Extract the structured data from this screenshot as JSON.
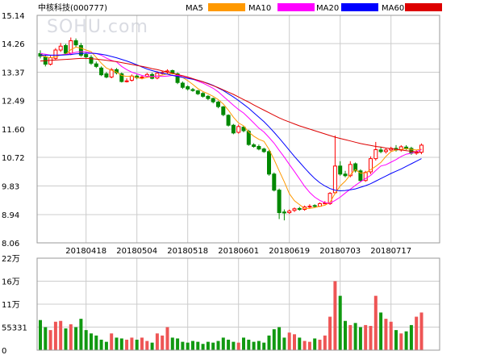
{
  "header": {
    "title": "中核科技(000777)",
    "watermark": "SOHU.com"
  },
  "legend": [
    {
      "label": "MA5",
      "color": "#ff9900"
    },
    {
      "label": "MA10",
      "color": "#ff00ff"
    },
    {
      "label": "MA20",
      "color": "#0000ff"
    },
    {
      "label": "MA60",
      "color": "#dd0000"
    }
  ],
  "colors": {
    "up": "#ff0000",
    "down": "#008800"
  },
  "chart_data": [
    {
      "type": "candlestick",
      "title": "中核科技(000777)",
      "ylim": [
        8.06,
        15.14
      ],
      "yticks": [
        "15.14",
        "14.26",
        "13.37",
        "12.49",
        "11.60",
        "10.72",
        "9.83",
        "8.94",
        "8.06"
      ],
      "ytick_values": [
        15.14,
        14.26,
        13.37,
        12.49,
        11.6,
        10.72,
        9.83,
        8.94,
        8.06
      ],
      "xtick_labels": [
        "20180418",
        "20180504",
        "20180518",
        "20180601",
        "20180619",
        "20180703",
        "20180717"
      ],
      "xtick_index": [
        9,
        19,
        29,
        39,
        49,
        59,
        69
      ],
      "legend_position": "top",
      "grid": true,
      "close": [
        13.87,
        13.62,
        13.82,
        14.06,
        14.18,
        13.96,
        14.35,
        14.22,
        13.9,
        13.85,
        13.65,
        13.55,
        13.29,
        13.22,
        13.45,
        13.35,
        13.08,
        13.1,
        13.25,
        13.2,
        13.22,
        13.3,
        13.18,
        13.34,
        13.36,
        13.41,
        13.34,
        13.05,
        12.9,
        12.85,
        12.8,
        12.7,
        12.62,
        12.55,
        12.45,
        12.3,
        12.05,
        11.72,
        11.48,
        11.68,
        11.55,
        11.12,
        11.06,
        10.98,
        10.9,
        10.2,
        9.7,
        9.0,
        8.99,
        9.05,
        9.12,
        9.1,
        9.18,
        9.2,
        9.2,
        9.28,
        9.3,
        9.6,
        10.45,
        10.2,
        10.15,
        10.5,
        10.3,
        10.0,
        10.25,
        10.68,
        10.96,
        10.9,
        10.95,
        11.0,
        10.95,
        11.05,
        11.0,
        10.85,
        10.88,
        11.1
      ],
      "open": [
        13.95,
        13.85,
        13.62,
        13.8,
        14.06,
        14.2,
        13.96,
        14.35,
        14.2,
        13.92,
        13.83,
        13.63,
        13.5,
        13.32,
        13.22,
        13.45,
        13.32,
        13.1,
        13.12,
        13.25,
        13.2,
        13.24,
        13.3,
        13.19,
        13.33,
        13.37,
        13.42,
        13.32,
        13.03,
        12.92,
        12.83,
        12.79,
        12.71,
        12.62,
        12.55,
        12.44,
        12.29,
        12.03,
        11.72,
        11.5,
        11.66,
        11.53,
        11.11,
        11.06,
        10.98,
        10.9,
        10.2,
        9.7,
        9.02,
        9.0,
        9.07,
        9.13,
        9.1,
        9.18,
        9.22,
        9.2,
        9.3,
        9.28,
        9.62,
        10.45,
        10.2,
        10.15,
        10.52,
        10.3,
        10.0,
        10.27,
        10.68,
        10.95,
        10.9,
        10.95,
        11.0,
        10.95,
        11.04,
        11.0,
        10.85,
        10.88
      ],
      "high": [
        14.05,
        13.92,
        13.88,
        14.12,
        14.28,
        14.25,
        14.45,
        14.42,
        14.28,
        13.98,
        13.9,
        13.7,
        13.55,
        13.38,
        13.5,
        13.5,
        13.36,
        13.18,
        13.3,
        13.3,
        13.28,
        13.35,
        13.35,
        13.4,
        13.42,
        13.46,
        13.45,
        13.36,
        13.08,
        12.96,
        12.88,
        12.82,
        12.75,
        12.66,
        12.58,
        12.48,
        12.32,
        12.06,
        11.76,
        11.74,
        11.7,
        11.58,
        11.16,
        11.12,
        11.02,
        10.95,
        10.25,
        9.75,
        9.1,
        9.1,
        9.16,
        9.18,
        9.22,
        9.26,
        9.26,
        9.32,
        9.36,
        9.64,
        11.4,
        10.6,
        10.3,
        10.6,
        10.56,
        10.35,
        10.3,
        10.75,
        11.2,
        11.05,
        11.0,
        11.05,
        11.1,
        11.1,
        11.1,
        11.05,
        10.95,
        11.15
      ],
      "low": [
        13.8,
        13.55,
        13.58,
        13.76,
        14.0,
        13.9,
        13.9,
        14.15,
        13.85,
        13.78,
        13.6,
        13.5,
        13.25,
        13.18,
        13.18,
        13.3,
        13.05,
        13.05,
        13.08,
        13.15,
        13.15,
        13.2,
        13.15,
        13.15,
        13.3,
        13.33,
        13.3,
        13.0,
        12.85,
        12.8,
        12.76,
        12.66,
        12.58,
        12.5,
        12.4,
        12.25,
        12.0,
        11.68,
        11.44,
        11.46,
        11.5,
        11.08,
        11.02,
        10.94,
        10.86,
        10.15,
        9.66,
        8.8,
        8.76,
        8.96,
        9.02,
        9.06,
        9.06,
        9.14,
        9.16,
        9.18,
        9.26,
        9.24,
        9.58,
        10.15,
        10.1,
        10.1,
        10.25,
        9.95,
        9.96,
        10.2,
        10.62,
        10.85,
        10.84,
        10.9,
        10.9,
        10.9,
        10.95,
        10.8,
        10.8,
        10.82
      ],
      "ma5": [
        13.9,
        13.85,
        13.82,
        13.85,
        13.91,
        13.93,
        14.07,
        14.15,
        14.12,
        14.06,
        14.01,
        13.83,
        13.65,
        13.5,
        13.43,
        13.37,
        13.27,
        13.24,
        13.25,
        13.2,
        13.17,
        13.21,
        13.23,
        13.25,
        13.28,
        13.32,
        13.33,
        13.3,
        13.21,
        13.11,
        12.99,
        12.86,
        12.77,
        12.7,
        12.62,
        12.52,
        12.38,
        12.19,
        11.97,
        11.79,
        11.7,
        11.51,
        11.38,
        11.28,
        11.22,
        10.97,
        10.65,
        10.3,
        9.96,
        9.59,
        9.37,
        9.25,
        9.13,
        9.13,
        9.16,
        9.2,
        9.23,
        9.32,
        9.6,
        9.83,
        9.98,
        10.18,
        10.34,
        10.23,
        10.24,
        10.34,
        10.44,
        10.56,
        10.75,
        10.9,
        10.95,
        10.97,
        10.99,
        10.97,
        10.95,
        10.98
      ],
      "ma10": [
        13.95,
        13.93,
        13.9,
        13.9,
        13.91,
        13.92,
        13.95,
        13.99,
        14.01,
        14.0,
        13.97,
        13.95,
        13.9,
        13.81,
        13.74,
        13.69,
        13.55,
        13.45,
        13.37,
        13.32,
        13.27,
        13.24,
        13.24,
        13.25,
        13.24,
        13.25,
        13.27,
        13.27,
        13.25,
        13.21,
        13.16,
        13.09,
        13.03,
        12.95,
        12.87,
        12.76,
        12.62,
        12.48,
        12.34,
        12.21,
        12.1,
        11.95,
        11.79,
        11.63,
        11.51,
        11.34,
        11.16,
        10.94,
        10.73,
        10.5,
        10.28,
        10.05,
        9.82,
        9.63,
        9.48,
        9.38,
        9.31,
        9.29,
        9.38,
        9.48,
        9.61,
        9.73,
        9.85,
        9.96,
        10.06,
        10.16,
        10.31,
        10.45,
        10.49,
        10.57,
        10.65,
        10.75,
        10.82,
        10.85,
        10.9,
        10.96
      ],
      "ma20": [
        13.9,
        13.9,
        13.9,
        13.9,
        13.9,
        13.91,
        13.92,
        13.94,
        13.95,
        13.96,
        13.96,
        13.95,
        13.93,
        13.9,
        13.86,
        13.82,
        13.77,
        13.72,
        13.66,
        13.6,
        13.53,
        13.47,
        13.42,
        13.38,
        13.34,
        13.31,
        13.27,
        13.24,
        13.21,
        13.18,
        13.15,
        13.12,
        13.07,
        13.02,
        12.96,
        12.88,
        12.8,
        12.7,
        12.6,
        12.49,
        12.37,
        12.25,
        12.11,
        11.97,
        11.83,
        11.67,
        11.5,
        11.32,
        11.13,
        10.94,
        10.75,
        10.57,
        10.39,
        10.22,
        10.06,
        9.93,
        9.83,
        9.75,
        9.7,
        9.68,
        9.69,
        9.71,
        9.74,
        9.79,
        9.84,
        9.9,
        9.98,
        10.06,
        10.14,
        10.22,
        10.29,
        10.36,
        10.44,
        10.52,
        10.6,
        10.68
      ],
      "ma60": [
        13.72,
        13.73,
        13.74,
        13.75,
        13.76,
        13.77,
        13.78,
        13.79,
        13.8,
        13.8,
        13.79,
        13.78,
        13.76,
        13.74,
        13.72,
        13.7,
        13.67,
        13.64,
        13.61,
        13.58,
        13.55,
        13.52,
        13.48,
        13.45,
        13.41,
        13.38,
        13.34,
        13.3,
        13.26,
        13.22,
        13.17,
        13.12,
        13.07,
        13.01,
        12.95,
        12.89,
        12.82,
        12.75,
        12.68,
        12.6,
        12.52,
        12.44,
        12.35,
        12.27,
        12.19,
        12.11,
        12.03,
        11.95,
        11.88,
        11.82,
        11.76,
        11.7,
        11.65,
        11.6,
        11.55,
        11.5,
        11.45,
        11.4,
        11.35,
        11.31,
        11.27,
        11.23,
        11.19,
        11.15,
        11.12,
        11.09,
        11.06,
        11.04,
        11.01,
        10.99,
        10.97,
        10.95,
        10.93,
        10.91,
        10.89,
        10.87
      ]
    },
    {
      "type": "bar",
      "title": "",
      "ylim": [
        0,
        220000
      ],
      "yticks": [
        "22万",
        "16万",
        "11万",
        "55331",
        "0"
      ],
      "ytick_values": [
        220000,
        165000,
        110000,
        55331,
        0
      ],
      "values": [
        72000,
        55000,
        48000,
        68000,
        70000,
        52000,
        62000,
        55000,
        75000,
        48000,
        40000,
        35000,
        25000,
        20000,
        40000,
        30000,
        28000,
        25000,
        30000,
        25000,
        30000,
        22000,
        18000,
        40000,
        35000,
        55000,
        30000,
        28000,
        20000,
        18000,
        22000,
        20000,
        15000,
        20000,
        18000,
        22000,
        30000,
        25000,
        20000,
        18000,
        30000,
        25000,
        20000,
        22000,
        18000,
        35000,
        50000,
        55000,
        30000,
        42000,
        38000,
        30000,
        22000,
        20000,
        28000,
        25000,
        35000,
        80000,
        165000,
        130000,
        70000,
        60000,
        65000,
        55000,
        60000,
        58000,
        130000,
        90000,
        75000,
        68000,
        48000,
        40000,
        45000,
        60000,
        80000,
        90000
      ]
    }
  ]
}
